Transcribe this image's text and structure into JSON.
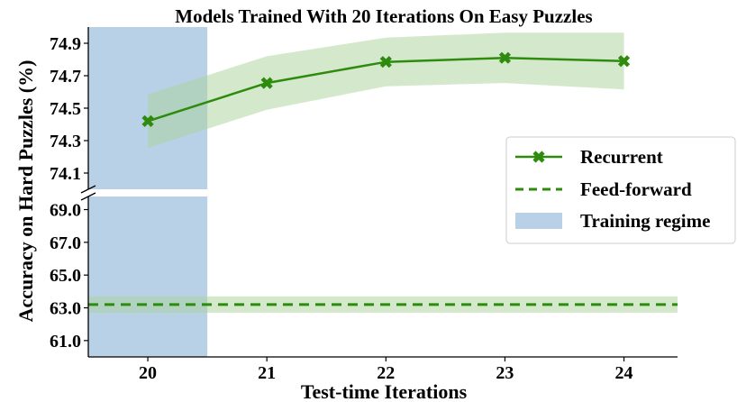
{
  "chart_data": {
    "type": "line",
    "title": "Models Trained With 20 Iterations On Easy Puzzles",
    "xlabel": "Test-time Iterations",
    "ylabel": "Accuracy on Hard Puzzles (%)",
    "x_ticks": [
      20,
      21,
      22,
      23,
      24
    ],
    "xlim": [
      19.5,
      24.45
    ],
    "y_axis_broken": true,
    "ylim_upper": [
      74.0,
      75.0
    ],
    "yticks_upper": [
      "74.1",
      "74.3",
      "74.5",
      "74.7",
      "74.9"
    ],
    "ylim_lower": [
      60.0,
      69.8
    ],
    "yticks_lower": [
      "61.0",
      "63.0",
      "65.0",
      "67.0",
      "69.0"
    ],
    "grid": false,
    "legend_position": "right",
    "series": [
      {
        "name": "Recurrent",
        "style": "solid line with x markers",
        "color": "#2e8b0e",
        "band_color": "#a9d39a",
        "x": [
          20,
          21,
          22,
          23,
          24
        ],
        "y": [
          74.42,
          74.655,
          74.785,
          74.81,
          74.79
        ],
        "band_low": [
          74.255,
          74.49,
          74.635,
          74.655,
          74.615
        ],
        "band_high": [
          74.585,
          74.82,
          74.935,
          74.965,
          74.965
        ]
      },
      {
        "name": "Feed-forward",
        "style": "dashed line",
        "color": "#2e8b0e",
        "band_color": "#a9d39a",
        "y": 63.2,
        "band_low": 62.7,
        "band_high": 63.7
      }
    ],
    "shaded_region": {
      "name": "Training regime",
      "x_range": [
        19.5,
        20.5
      ],
      "color": "#b9d1e6"
    }
  }
}
